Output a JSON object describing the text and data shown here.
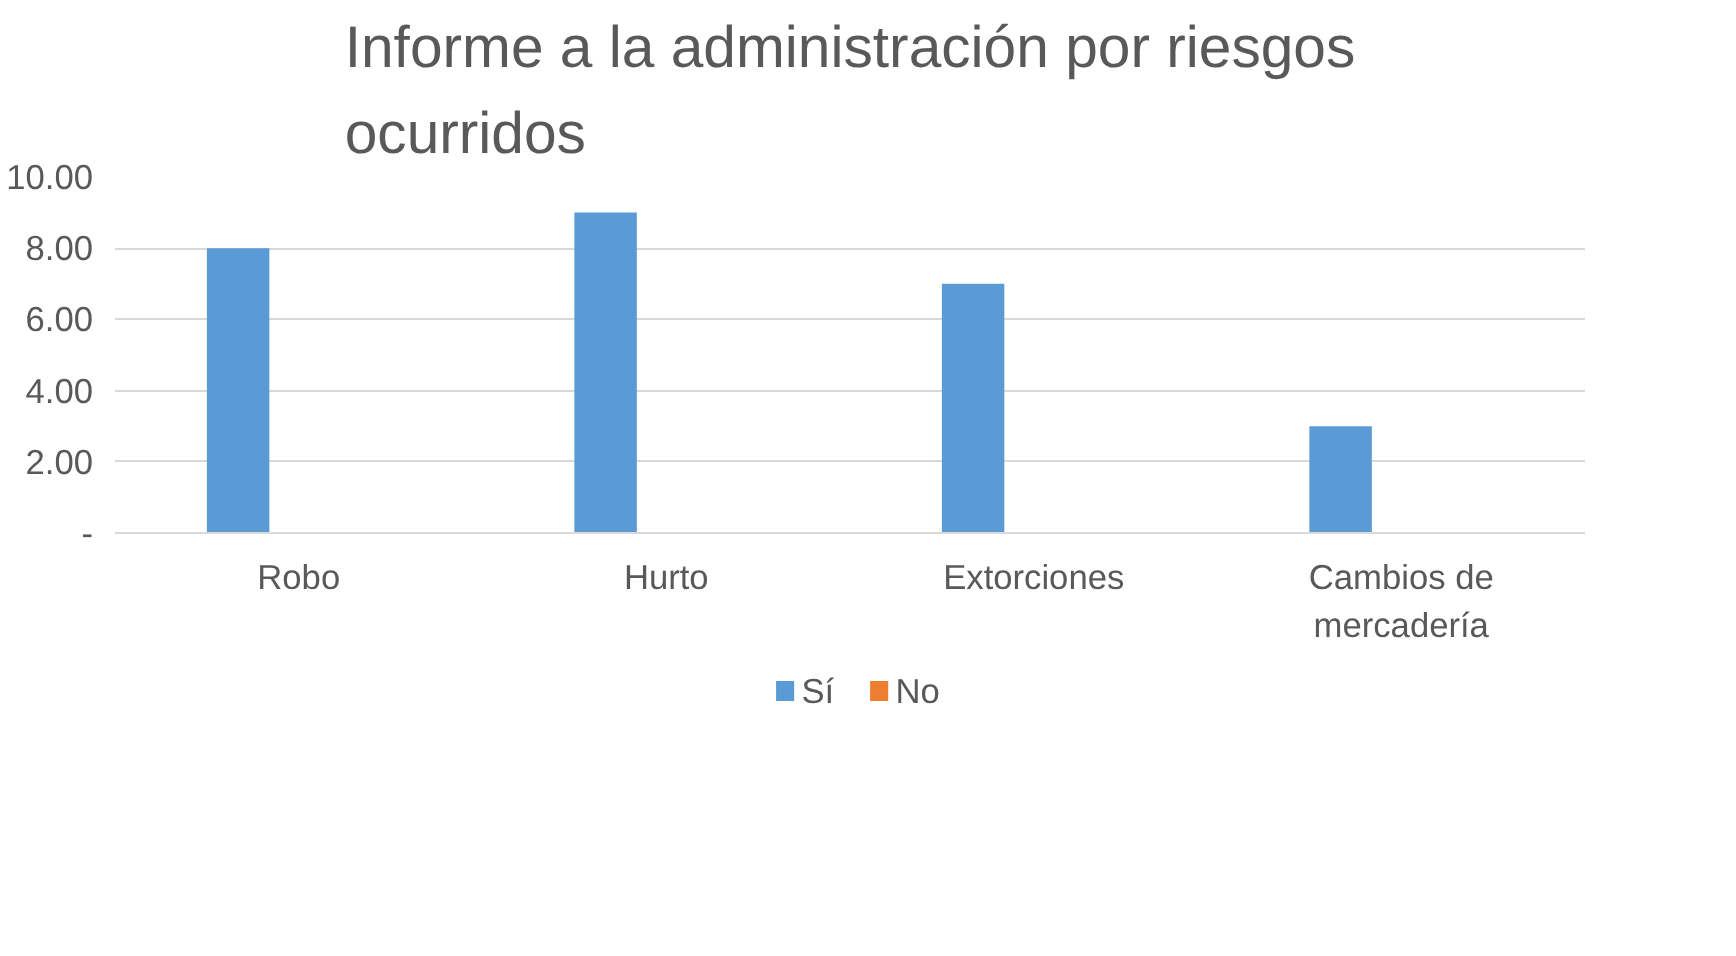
{
  "chart_data": {
    "type": "bar",
    "title": "Informe a la administración por riesgos ocurridos",
    "categories": [
      "Robo",
      "Hurto",
      "Extorciones",
      "Cambios de mercadería"
    ],
    "series": [
      {
        "name": "Sí",
        "color": "#5b9bd5",
        "values": [
          8,
          9,
          7,
          3
        ]
      },
      {
        "name": "No",
        "color": "#ed7d31",
        "values": [
          0,
          0,
          0,
          0
        ]
      }
    ],
    "ylim": [
      0,
      10
    ],
    "yticks": [
      {
        "value": 0,
        "label": "-"
      },
      {
        "value": 2,
        "label": "2.00"
      },
      {
        "value": 4,
        "label": "4.00"
      },
      {
        "value": 6,
        "label": "6.00"
      },
      {
        "value": 8,
        "label": "8.00"
      },
      {
        "value": 10,
        "label": "10.00"
      }
    ],
    "grid": "y",
    "legend": "bottom"
  }
}
